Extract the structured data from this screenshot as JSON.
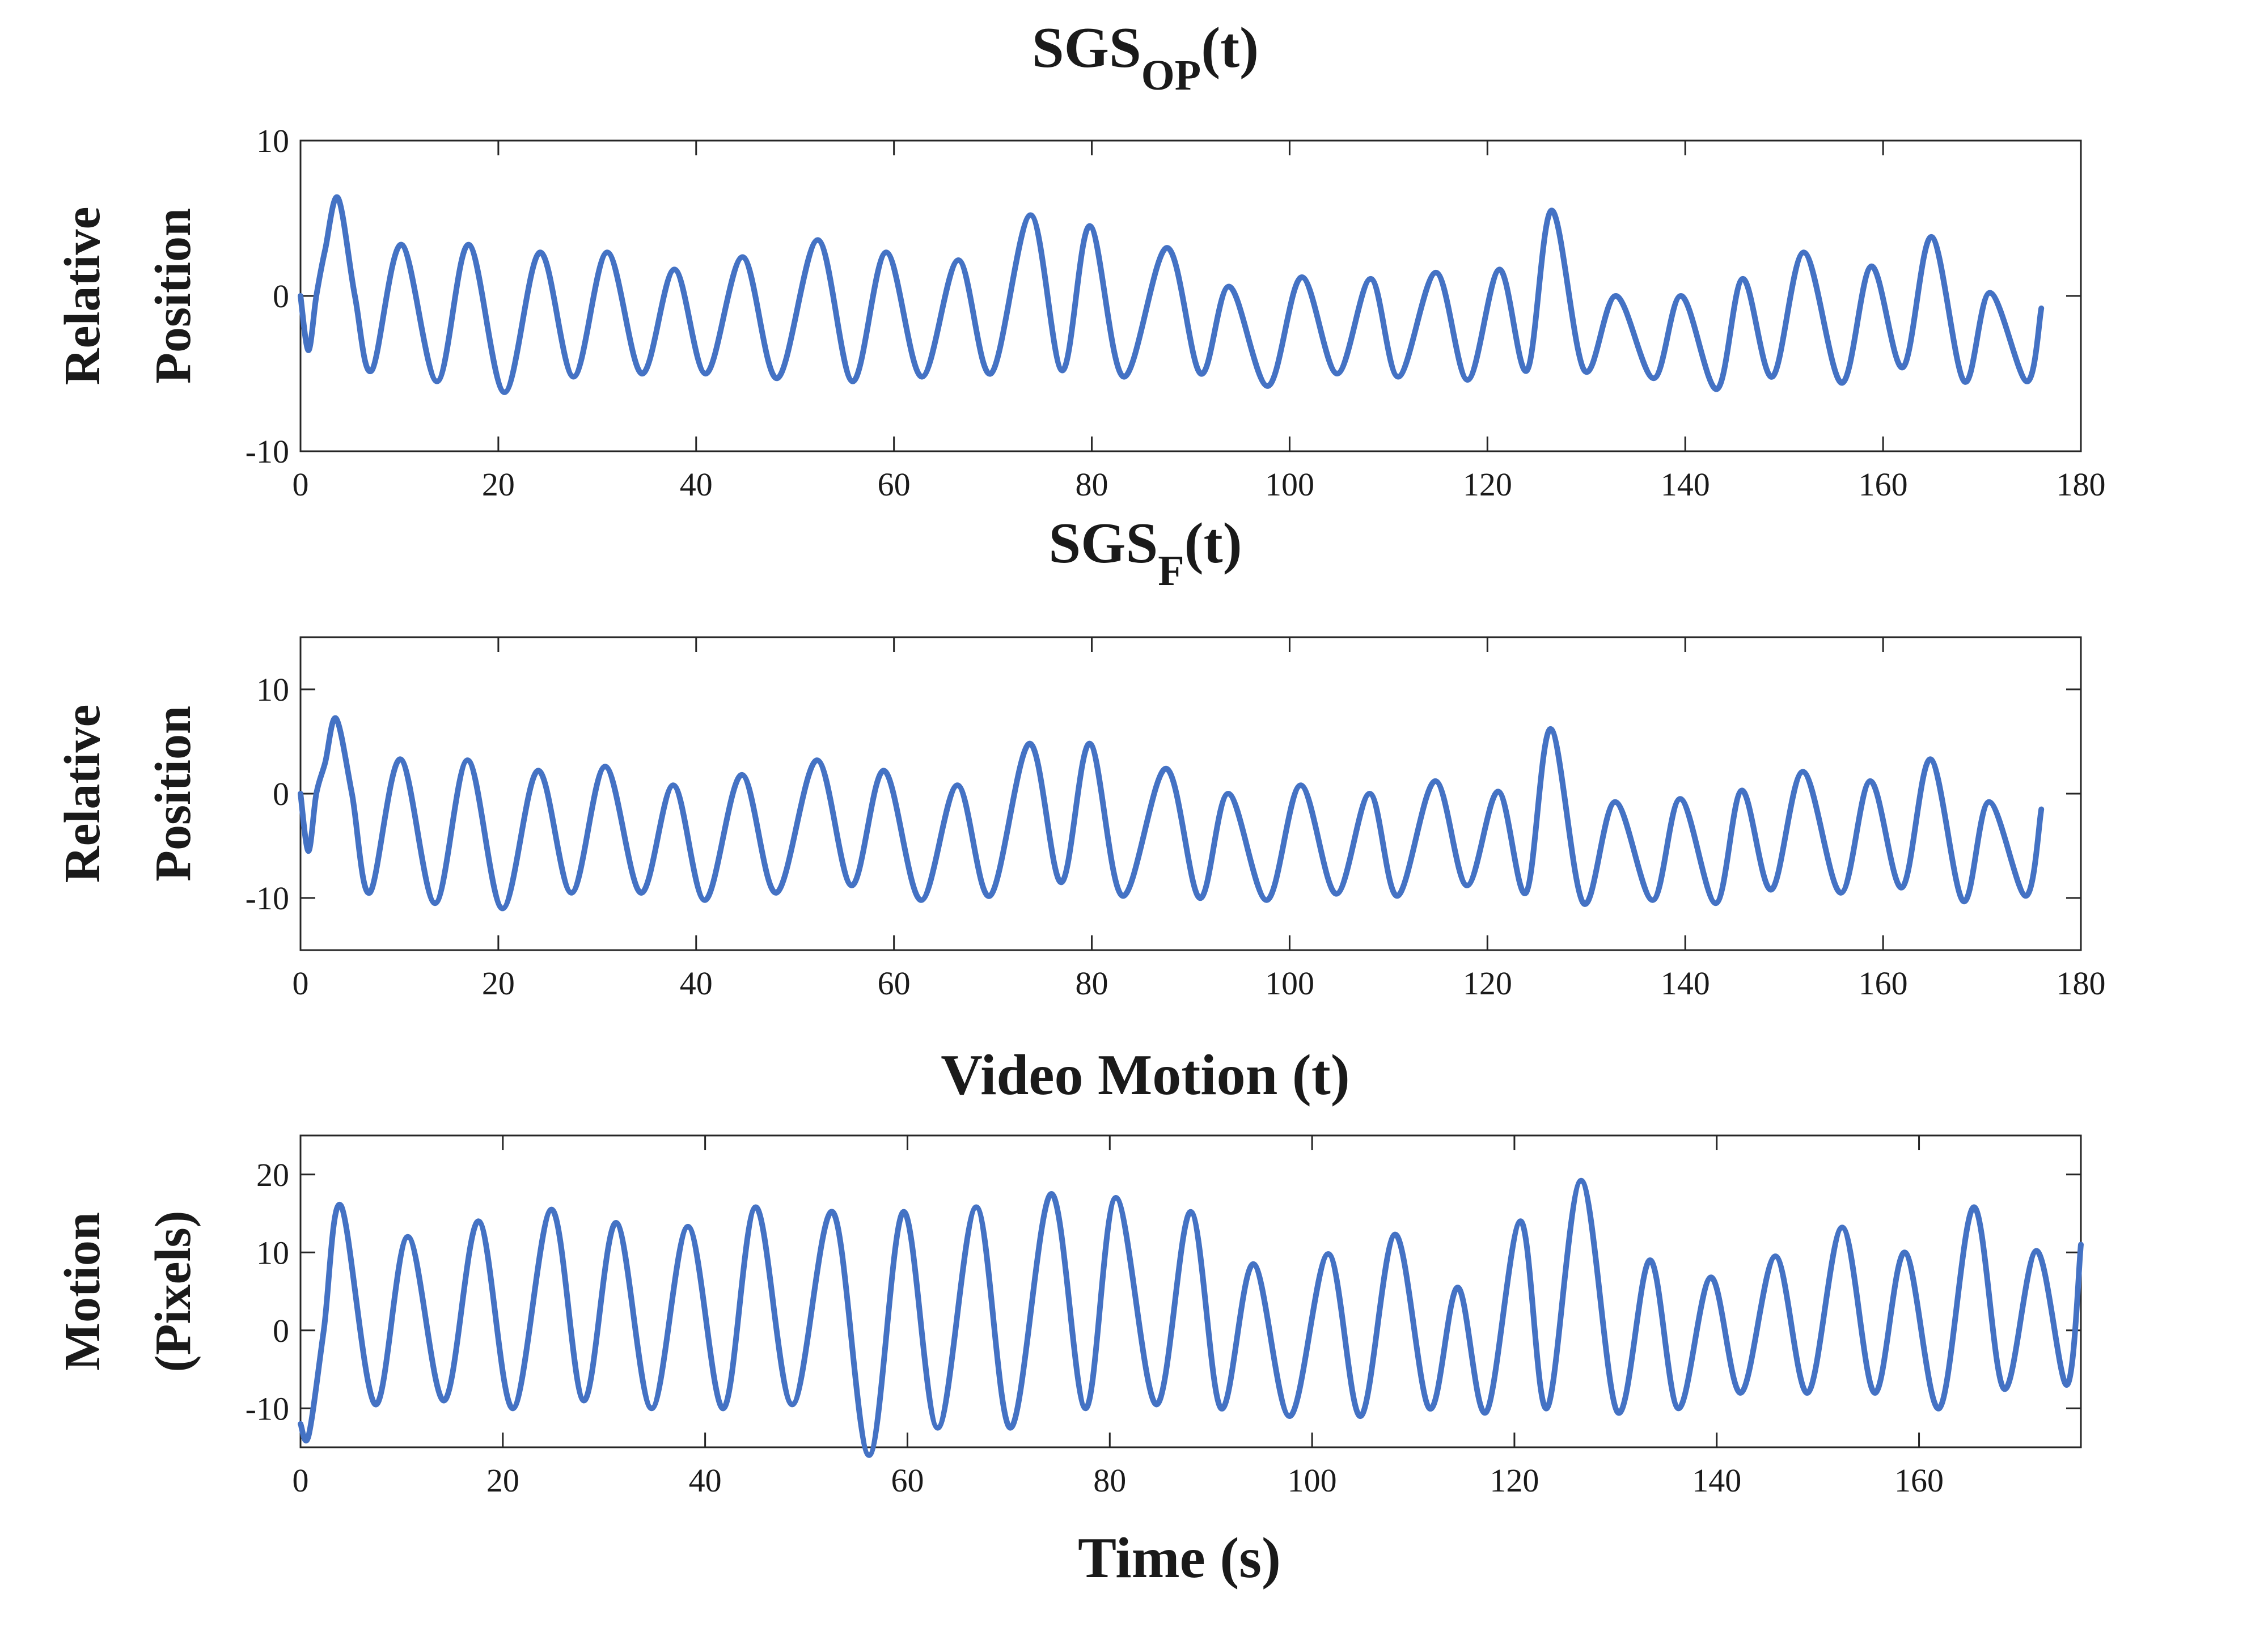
{
  "chart_data": [
    {
      "type": "line",
      "title": "SGS",
      "title_subscript": "OP",
      "title_suffix": "(t)",
      "ylabel_lines": [
        "Relative",
        "Position"
      ],
      "xlabel": "",
      "xlim": [
        0,
        180
      ],
      "ylim": [
        -10,
        10
      ],
      "xticks": [
        0,
        20,
        40,
        60,
        80,
        100,
        120,
        140,
        160,
        180
      ],
      "yticks": [
        -10,
        0,
        10
      ],
      "grid": false,
      "series": [
        {
          "name": "SGS_OP",
          "color": "#4472c4",
          "x": [
            0,
            0.8,
            1.6,
            2.5,
            3.8,
            5.5,
            7.2,
            10.2,
            13.8,
            17.0,
            20.6,
            24.2,
            27.6,
            31.0,
            34.5,
            37.8,
            41.0,
            44.7,
            48.2,
            52.3,
            55.8,
            59.2,
            62.8,
            66.5,
            69.8,
            73.8,
            77.0,
            79.8,
            83.2,
            87.6,
            91.0,
            93.9,
            97.8,
            101.2,
            104.8,
            108.2,
            111.0,
            114.8,
            118.0,
            121.2,
            124.0,
            126.5,
            129.8,
            133.0,
            136.8,
            139.6,
            143.2,
            145.8,
            148.8,
            152.0,
            155.8,
            158.8,
            162.0,
            164.9,
            168.2,
            170.8,
            174.5,
            176.0
          ],
          "y": [
            0,
            -3.5,
            0,
            3,
            6.3,
            0,
            -4.8,
            3.3,
            -5.5,
            3.3,
            -6.2,
            2.8,
            -5.2,
            2.8,
            -5,
            1.7,
            -5,
            2.5,
            -5.3,
            3.6,
            -5.5,
            2.8,
            -5.2,
            2.3,
            -5,
            5.2,
            -4.8,
            4.5,
            -5.2,
            3.1,
            -5,
            0.6,
            -5.8,
            1.2,
            -5,
            1.1,
            -5.2,
            1.5,
            -5.4,
            1.7,
            -4.8,
            5.5,
            -4.8,
            0,
            -5.3,
            0,
            -6,
            1.1,
            -5.2,
            2.8,
            -5.6,
            1.9,
            -4.6,
            3.8,
            -5.5,
            0.2,
            -5.5,
            -0.8
          ]
        }
      ]
    },
    {
      "type": "line",
      "title": "SGS",
      "title_subscript": "F",
      "title_suffix": "(t)",
      "ylabel_lines": [
        "Relative",
        "Position"
      ],
      "xlabel": "",
      "xlim": [
        0,
        180
      ],
      "ylim": [
        -15,
        15
      ],
      "xticks": [
        0,
        20,
        40,
        60,
        80,
        100,
        120,
        140,
        160,
        180
      ],
      "yticks": [
        -10,
        0,
        10
      ],
      "grid": false,
      "series": [
        {
          "name": "SGS_F",
          "color": "#4472c4",
          "x": [
            0,
            0.8,
            1.6,
            2.5,
            3.6,
            5.2,
            7.0,
            10.1,
            13.6,
            16.9,
            20.4,
            24.0,
            27.4,
            30.8,
            34.4,
            37.7,
            40.9,
            44.6,
            48.1,
            52.2,
            55.7,
            59.0,
            62.7,
            66.4,
            69.7,
            73.7,
            76.9,
            79.8,
            83.1,
            87.5,
            90.9,
            93.8,
            97.7,
            101.1,
            104.7,
            108.1,
            110.9,
            114.7,
            117.9,
            121.1,
            123.9,
            126.4,
            129.7,
            132.9,
            136.7,
            139.5,
            143.1,
            145.7,
            148.7,
            151.9,
            155.7,
            158.7,
            161.9,
            164.8,
            168.1,
            170.7,
            174.4,
            176.0
          ],
          "y": [
            0,
            -5.5,
            0,
            3,
            7.2,
            0,
            -9.5,
            3.3,
            -10.5,
            3.2,
            -11,
            2.2,
            -9.5,
            2.6,
            -9.5,
            0.8,
            -10.2,
            1.8,
            -9.5,
            3.2,
            -8.8,
            2.2,
            -10.2,
            0.8,
            -9.8,
            4.8,
            -8.5,
            4.8,
            -9.8,
            2.4,
            -10,
            0,
            -10.2,
            0.8,
            -9.6,
            0,
            -9.8,
            1.2,
            -8.8,
            0.2,
            -9.5,
            6.2,
            -10.5,
            -0.8,
            -10.2,
            -0.5,
            -10.5,
            0.3,
            -9.2,
            2.1,
            -9.5,
            1.2,
            -9,
            3.3,
            -10.3,
            -0.8,
            -9.8,
            -1.5
          ]
        }
      ]
    },
    {
      "type": "line",
      "title": "Video Motion (t)",
      "title_subscript": "",
      "title_suffix": "",
      "ylabel_lines": [
        "Motion",
        "(Pixels)"
      ],
      "xlabel": "Time (s)",
      "xlim": [
        0,
        176
      ],
      "ylim": [
        -15,
        25
      ],
      "xticks": [
        0,
        20,
        40,
        60,
        80,
        100,
        120,
        140,
        160
      ],
      "yticks": [
        -10,
        0,
        10,
        20
      ],
      "grid": false,
      "series": [
        {
          "name": "Video Motion",
          "color": "#4472c4",
          "x": [
            0,
            0.8,
            2.3,
            4.0,
            7.4,
            10.6,
            14.2,
            17.6,
            21.0,
            24.8,
            28.0,
            31.2,
            34.7,
            38.3,
            41.8,
            45.0,
            48.6,
            52.6,
            56.2,
            59.6,
            63.0,
            66.8,
            70.2,
            74.2,
            77.6,
            80.6,
            84.6,
            88.0,
            91.0,
            94.2,
            97.8,
            101.6,
            104.8,
            108.2,
            111.6,
            114.4,
            117.2,
            120.6,
            123.2,
            126.6,
            130.2,
            133.4,
            136.2,
            139.4,
            142.4,
            145.8,
            149.0,
            152.4,
            155.6,
            158.6,
            162.0,
            165.4,
            168.4,
            171.6,
            174.6,
            176.0
          ],
          "y": [
            -12,
            -13.5,
            0,
            16,
            -9.5,
            12,
            -9,
            14,
            -10,
            15.5,
            -9,
            13.8,
            -10,
            13.3,
            -10,
            15.8,
            -9.5,
            15.2,
            -16,
            15.2,
            -12.5,
            15.8,
            -12.5,
            17.5,
            -10,
            17,
            -9.5,
            15.2,
            -10,
            8.5,
            -11,
            9.8,
            -11,
            12.3,
            -10,
            5.5,
            -10.5,
            14,
            -10,
            19.2,
            -10.5,
            9,
            -10,
            6.8,
            -8,
            9.5,
            -8,
            13.2,
            -8,
            10,
            -10,
            15.8,
            -7.5,
            10.2,
            -7,
            11
          ]
        }
      ]
    }
  ]
}
